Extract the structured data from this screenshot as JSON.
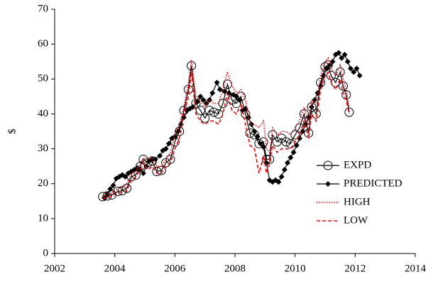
{
  "chart_data": {
    "type": "line",
    "ylabel": "$",
    "xlim": [
      2002,
      2014
    ],
    "xticks": [
      2002,
      2004,
      2006,
      2008,
      2010,
      2012,
      2014
    ],
    "ylim": [
      0,
      70
    ],
    "yticks": [
      0,
      10,
      20,
      30,
      40,
      50,
      60,
      70
    ],
    "grid": false,
    "legend": "lower right",
    "series": [
      {
        "name": "EXPD",
        "color": "#000000",
        "marker": "circle",
        "dash": "none",
        "x": [
          2003.6,
          2003.75,
          2003.9,
          2004.1,
          2004.25,
          2004.4,
          2004.55,
          2004.7,
          2004.85,
          2004.95,
          2005.1,
          2005.25,
          2005.4,
          2005.55,
          2005.7,
          2005.85,
          2006.0,
          2006.15,
          2006.3,
          2006.45,
          2006.55,
          2006.7,
          2006.85,
          2007.0,
          2007.15,
          2007.3,
          2007.45,
          2007.6,
          2007.75,
          2007.9,
          2008.05,
          2008.2,
          2008.35,
          2008.5,
          2008.65,
          2008.8,
          2008.95,
          2009.05,
          2009.15,
          2009.25,
          2009.4,
          2009.55,
          2009.7,
          2009.85,
          2010.0,
          2010.15,
          2010.3,
          2010.45,
          2010.55,
          2010.7,
          2010.85,
          2011.0,
          2011.1,
          2011.2,
          2011.35,
          2011.5,
          2011.6,
          2011.7,
          2011.8
        ],
        "values": [
          16.3,
          16.5,
          16.8,
          17.8,
          18,
          18.7,
          22,
          22.5,
          25,
          27,
          26,
          26.5,
          23.5,
          23.8,
          26,
          27,
          32,
          35,
          41,
          47,
          53.8,
          43,
          41,
          38.8,
          41,
          40.5,
          40,
          43,
          48.5,
          44,
          43,
          45,
          40,
          34.5,
          34,
          31.5,
          32,
          27,
          27,
          34,
          32,
          33,
          32,
          31.5,
          34,
          36,
          40,
          34.5,
          42,
          40,
          49,
          53.5,
          54,
          51,
          49,
          52,
          48,
          45.5,
          40.5
        ]
      },
      {
        "name": "PREDICTED",
        "color": "#000000",
        "marker": "diamond",
        "dash": "none",
        "x": [
          2003.65,
          2003.75,
          2003.85,
          2003.95,
          2004.05,
          2004.15,
          2004.25,
          2004.35,
          2004.45,
          2004.55,
          2004.65,
          2004.75,
          2004.85,
          2004.95,
          2005.05,
          2005.15,
          2005.25,
          2005.35,
          2005.5,
          2005.6,
          2005.7,
          2005.8,
          2005.9,
          2006.0,
          2006.1,
          2006.2,
          2006.3,
          2006.4,
          2006.5,
          2006.6,
          2006.75,
          2006.85,
          2006.95,
          2007.05,
          2007.15,
          2007.25,
          2007.4,
          2007.5,
          2007.65,
          2007.8,
          2007.95,
          2008.05,
          2008.15,
          2008.25,
          2008.35,
          2008.45,
          2008.55,
          2008.65,
          2008.75,
          2008.85,
          2008.95,
          2009.05,
          2009.15,
          2009.25,
          2009.35,
          2009.45,
          2009.55,
          2009.65,
          2009.75,
          2009.85,
          2009.95,
          2010.05,
          2010.15,
          2010.25,
          2010.35,
          2010.45,
          2010.55,
          2010.65,
          2010.75,
          2010.85,
          2010.95,
          2011.05,
          2011.15,
          2011.25,
          2011.35,
          2011.45,
          2011.55,
          2011.65,
          2011.75,
          2011.85,
          2011.95,
          2012.05,
          2012.15
        ],
        "values": [
          16,
          17,
          18.5,
          19.5,
          21.5,
          22,
          22.5,
          22,
          23,
          23.5,
          24,
          24.5,
          24,
          23,
          25,
          26.5,
          27,
          27,
          28,
          29.5,
          30,
          31.5,
          33,
          33.5,
          35,
          37,
          39,
          41,
          41.5,
          42,
          43.5,
          45,
          44,
          43,
          44,
          46,
          49,
          47,
          46.5,
          46,
          45.5,
          45,
          44,
          41,
          41.5,
          39,
          37,
          35,
          33.5,
          31.5,
          30.5,
          26,
          21,
          20.5,
          21,
          20.5,
          22,
          24,
          26,
          27.5,
          29,
          31,
          33,
          35,
          37,
          39,
          42,
          44,
          46,
          48,
          51,
          53,
          54,
          55,
          57,
          57.5,
          56,
          57,
          55,
          53,
          52,
          53,
          51
        ]
      },
      {
        "name": "HIGH",
        "color": "#ff0000",
        "marker": "none",
        "dash": "dotted",
        "x": [
          2003.6,
          2003.75,
          2003.9,
          2004.1,
          2004.25,
          2004.4,
          2004.55,
          2004.7,
          2004.85,
          2004.95,
          2005.1,
          2005.25,
          2005.4,
          2005.55,
          2005.7,
          2005.85,
          2006.0,
          2006.15,
          2006.3,
          2006.45,
          2006.55,
          2006.7,
          2006.85,
          2007.0,
          2007.15,
          2007.3,
          2007.45,
          2007.6,
          2007.75,
          2007.9,
          2008.05,
          2008.2,
          2008.35,
          2008.5,
          2008.65,
          2008.8,
          2008.95,
          2009.05,
          2009.15,
          2009.25,
          2009.4,
          2009.55,
          2009.7,
          2009.85,
          2010.0,
          2010.15,
          2010.3,
          2010.45,
          2010.55,
          2010.7,
          2010.85,
          2011.0,
          2011.1,
          2011.2,
          2011.35,
          2011.5,
          2011.6,
          2011.7,
          2011.8
        ],
        "values": [
          16.5,
          17,
          17.5,
          18.5,
          19,
          20,
          23,
          23.5,
          26,
          27.5,
          27,
          27.5,
          25,
          25,
          27,
          29,
          34,
          37,
          42,
          49,
          55.5,
          45,
          44,
          42,
          44,
          43,
          43,
          47,
          52,
          48,
          46,
          47,
          44,
          37,
          37,
          36,
          38,
          30,
          29,
          36,
          34,
          35,
          35,
          34,
          36,
          38,
          42,
          37,
          44,
          43,
          51,
          55,
          56,
          53,
          51,
          54,
          50,
          47,
          42
        ]
      },
      {
        "name": "LOW",
        "color": "#ff0000",
        "marker": "none",
        "dash": "dashed",
        "x": [
          2003.6,
          2003.75,
          2003.9,
          2004.1,
          2004.25,
          2004.4,
          2004.55,
          2004.7,
          2004.85,
          2004.95,
          2005.1,
          2005.25,
          2005.4,
          2005.55,
          2005.7,
          2005.85,
          2006.0,
          2006.15,
          2006.3,
          2006.45,
          2006.55,
          2006.7,
          2006.85,
          2007.0,
          2007.15,
          2007.3,
          2007.45,
          2007.6,
          2007.75,
          2007.9,
          2008.05,
          2008.2,
          2008.35,
          2008.5,
          2008.65,
          2008.8,
          2008.95,
          2009.05,
          2009.15,
          2009.25,
          2009.4,
          2009.55,
          2009.7,
          2009.85,
          2010.0,
          2010.15,
          2010.3,
          2010.45,
          2010.55,
          2010.7,
          2010.85,
          2011.0,
          2011.1,
          2011.2,
          2011.35,
          2011.5,
          2011.6,
          2011.7,
          2011.8
        ],
        "values": [
          16,
          16,
          16.5,
          17.5,
          17.5,
          18,
          21,
          22,
          24,
          26,
          24,
          25,
          23,
          23,
          25,
          26,
          30,
          33,
          40,
          45,
          52,
          40,
          38,
          37,
          38,
          38,
          37,
          40,
          46,
          41,
          40,
          43,
          37,
          31,
          30,
          23,
          28,
          23,
          26,
          31,
          29,
          30,
          30,
          30,
          32,
          34,
          38,
          33,
          40,
          38,
          47,
          51,
          52,
          49,
          47,
          50,
          46,
          44,
          40
        ]
      }
    ]
  }
}
